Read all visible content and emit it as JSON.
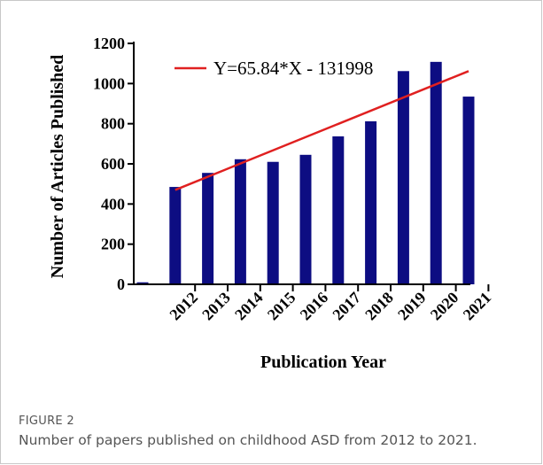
{
  "figure": {
    "label": "FIGURE 2",
    "caption": "Number of papers published on childhood ASD from 2012 to 2021."
  },
  "chart_data": {
    "type": "bar",
    "title": "",
    "xlabel": "Publication Year",
    "ylabel": "Number of Articles Published",
    "categories": [
      "",
      "2012",
      "2013",
      "2014",
      "2015",
      "2016",
      "2017",
      "2018",
      "2019",
      "2020",
      "2021"
    ],
    "series": [
      {
        "values": [
          10,
          485,
          555,
          623,
          610,
          645,
          737,
          812,
          1062,
          1108,
          935
        ]
      }
    ],
    "ylim": [
      0,
      1200
    ],
    "yticks": [
      0,
      200,
      400,
      600,
      800,
      1000,
      1200
    ],
    "grid": false,
    "trendline": {
      "label": "Y=65.84*X - 131998",
      "x_start": "2012",
      "x_end": "2021",
      "y_start": 470,
      "y_end": 1062
    },
    "colors": {
      "bar": "#0d0d82",
      "trendline": "#e02020",
      "axis": "#000000"
    }
  }
}
